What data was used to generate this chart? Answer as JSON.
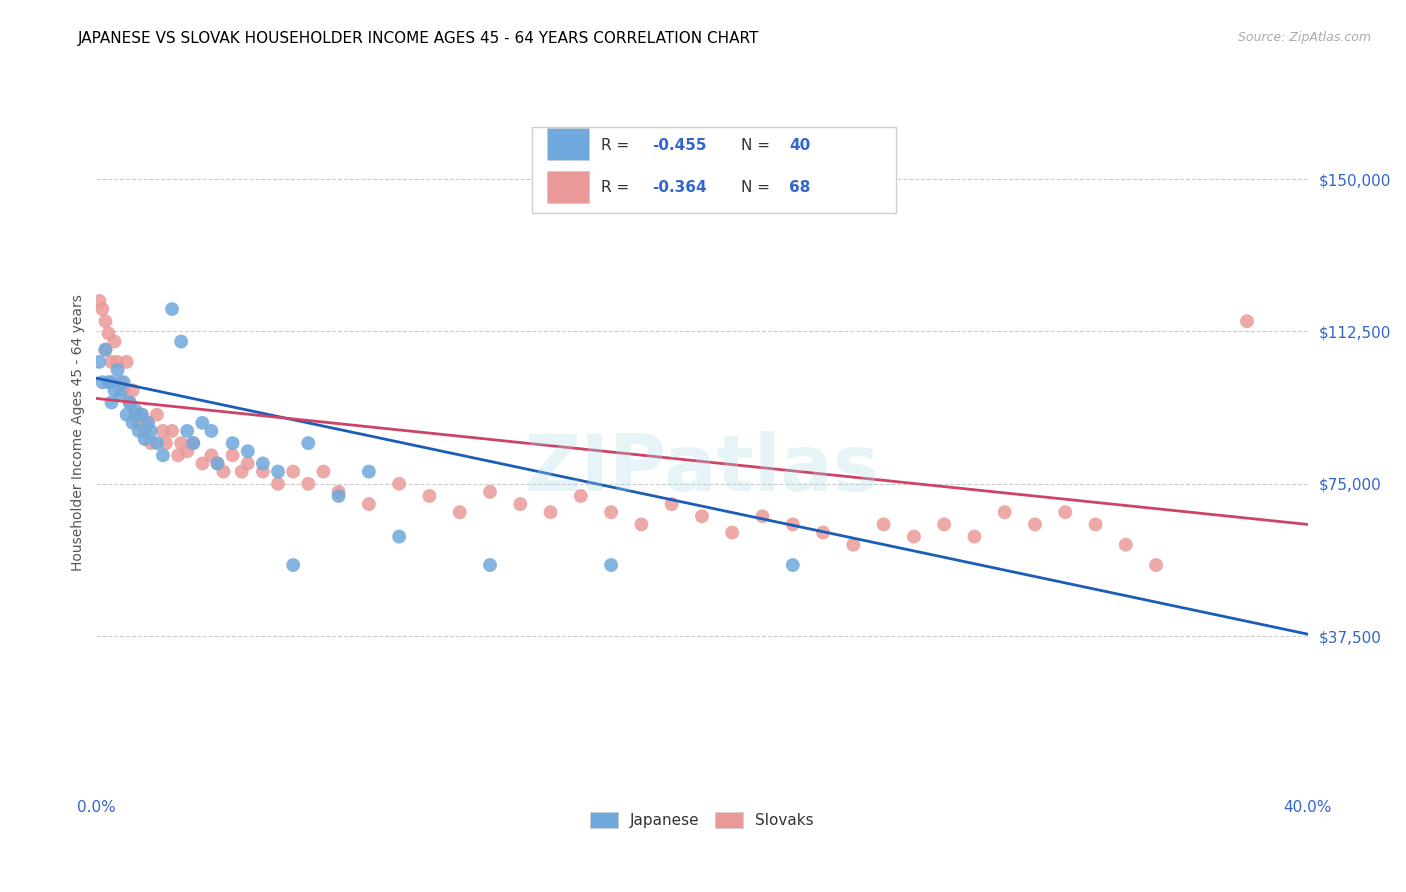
{
  "title": "JAPANESE VS SLOVAK HOUSEHOLDER INCOME AGES 45 - 64 YEARS CORRELATION CHART",
  "source": "Source: ZipAtlas.com",
  "ylabel": "Householder Income Ages 45 - 64 years",
  "xlim": [
    0.0,
    0.4
  ],
  "ylim": [
    0,
    175000
  ],
  "yticks": [
    37500,
    75000,
    112500,
    150000
  ],
  "ytick_labels": [
    "$37,500",
    "$75,000",
    "$112,500",
    "$150,000"
  ],
  "xticks": [
    0.0,
    0.1,
    0.2,
    0.3,
    0.4
  ],
  "xtick_labels": [
    "0.0%",
    "",
    "",
    "",
    "40.0%"
  ],
  "japanese_color": "#6fa8dc",
  "slovak_color": "#ea9999",
  "japanese_line_color": "#1a5eb8",
  "slovak_line_color": "#cc4466",
  "watermark": "ZIPatlas",
  "japanese_scatter": [
    [
      0.001,
      105000
    ],
    [
      0.002,
      100000
    ],
    [
      0.003,
      108000
    ],
    [
      0.004,
      100000
    ],
    [
      0.005,
      95000
    ],
    [
      0.005,
      100000
    ],
    [
      0.006,
      98000
    ],
    [
      0.007,
      103000
    ],
    [
      0.008,
      97000
    ],
    [
      0.009,
      100000
    ],
    [
      0.01,
      92000
    ],
    [
      0.011,
      95000
    ],
    [
      0.012,
      90000
    ],
    [
      0.013,
      93000
    ],
    [
      0.014,
      88000
    ],
    [
      0.015,
      92000
    ],
    [
      0.016,
      86000
    ],
    [
      0.017,
      90000
    ],
    [
      0.018,
      88000
    ],
    [
      0.02,
      85000
    ],
    [
      0.022,
      82000
    ],
    [
      0.025,
      118000
    ],
    [
      0.028,
      110000
    ],
    [
      0.03,
      88000
    ],
    [
      0.032,
      85000
    ],
    [
      0.035,
      90000
    ],
    [
      0.038,
      88000
    ],
    [
      0.04,
      80000
    ],
    [
      0.045,
      85000
    ],
    [
      0.05,
      83000
    ],
    [
      0.055,
      80000
    ],
    [
      0.06,
      78000
    ],
    [
      0.065,
      55000
    ],
    [
      0.07,
      85000
    ],
    [
      0.08,
      72000
    ],
    [
      0.09,
      78000
    ],
    [
      0.1,
      62000
    ],
    [
      0.13,
      55000
    ],
    [
      0.17,
      55000
    ],
    [
      0.23,
      55000
    ]
  ],
  "slovak_scatter": [
    [
      0.001,
      120000
    ],
    [
      0.002,
      118000
    ],
    [
      0.003,
      115000
    ],
    [
      0.003,
      108000
    ],
    [
      0.004,
      112000
    ],
    [
      0.005,
      105000
    ],
    [
      0.006,
      110000
    ],
    [
      0.007,
      105000
    ],
    [
      0.008,
      100000
    ],
    [
      0.009,
      98000
    ],
    [
      0.01,
      105000
    ],
    [
      0.011,
      95000
    ],
    [
      0.012,
      98000
    ],
    [
      0.013,
      92000
    ],
    [
      0.014,
      90000
    ],
    [
      0.015,
      92000
    ],
    [
      0.016,
      88000
    ],
    [
      0.017,
      90000
    ],
    [
      0.018,
      85000
    ],
    [
      0.02,
      92000
    ],
    [
      0.022,
      88000
    ],
    [
      0.023,
      85000
    ],
    [
      0.025,
      88000
    ],
    [
      0.027,
      82000
    ],
    [
      0.028,
      85000
    ],
    [
      0.03,
      83000
    ],
    [
      0.032,
      85000
    ],
    [
      0.035,
      80000
    ],
    [
      0.038,
      82000
    ],
    [
      0.04,
      80000
    ],
    [
      0.042,
      78000
    ],
    [
      0.045,
      82000
    ],
    [
      0.048,
      78000
    ],
    [
      0.05,
      80000
    ],
    [
      0.055,
      78000
    ],
    [
      0.06,
      75000
    ],
    [
      0.065,
      78000
    ],
    [
      0.07,
      75000
    ],
    [
      0.075,
      78000
    ],
    [
      0.08,
      73000
    ],
    [
      0.09,
      70000
    ],
    [
      0.1,
      75000
    ],
    [
      0.11,
      72000
    ],
    [
      0.12,
      68000
    ],
    [
      0.13,
      73000
    ],
    [
      0.14,
      70000
    ],
    [
      0.15,
      68000
    ],
    [
      0.16,
      72000
    ],
    [
      0.17,
      68000
    ],
    [
      0.18,
      65000
    ],
    [
      0.19,
      70000
    ],
    [
      0.2,
      67000
    ],
    [
      0.21,
      63000
    ],
    [
      0.22,
      67000
    ],
    [
      0.23,
      65000
    ],
    [
      0.24,
      63000
    ],
    [
      0.25,
      60000
    ],
    [
      0.26,
      65000
    ],
    [
      0.27,
      62000
    ],
    [
      0.28,
      65000
    ],
    [
      0.29,
      62000
    ],
    [
      0.3,
      68000
    ],
    [
      0.31,
      65000
    ],
    [
      0.32,
      68000
    ],
    [
      0.33,
      65000
    ],
    [
      0.34,
      60000
    ],
    [
      0.35,
      55000
    ],
    [
      0.38,
      115000
    ]
  ],
  "japanese_trendline": [
    [
      0.0,
      101000
    ],
    [
      0.4,
      38000
    ]
  ],
  "slovak_trendline": [
    [
      0.0,
      96000
    ],
    [
      0.4,
      65000
    ]
  ],
  "background_color": "#ffffff",
  "grid_color": "#cccccc",
  "title_color": "#000000",
  "axis_label_color": "#555555",
  "tick_color": "#3366cc",
  "title_fontsize": 11,
  "ylabel_fontsize": 10,
  "tick_fontsize": 11
}
